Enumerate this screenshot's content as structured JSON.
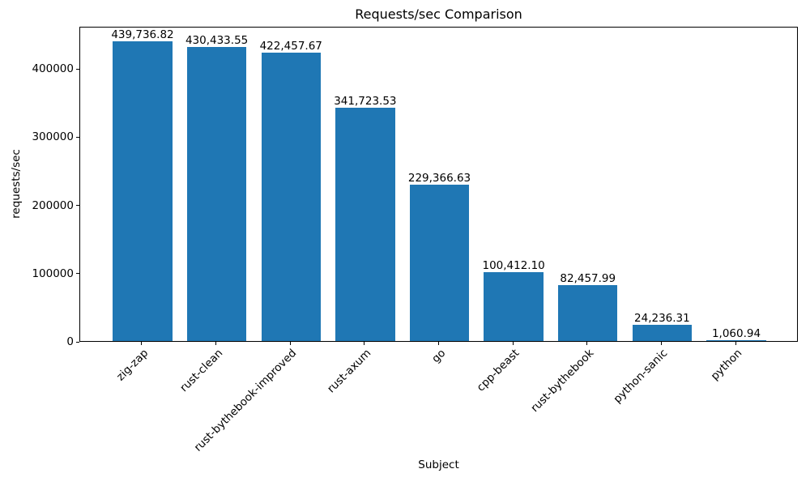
{
  "chart_data": {
    "type": "bar",
    "title": "Requests/sec Comparison",
    "xlabel": "Subject",
    "ylabel": "requests/sec",
    "categories": [
      "zig-zap",
      "rust-clean",
      "rust-bythebook-improved",
      "rust-axum",
      "go",
      "cpp-beast",
      "rust-bythebook",
      "python-sanic",
      "python"
    ],
    "values": [
      439736.82,
      430433.55,
      422457.67,
      341723.53,
      229366.63,
      100412.1,
      82457.99,
      24236.31,
      1060.94
    ],
    "value_labels": [
      "439,736.82",
      "430,433.55",
      "422,457.67",
      "341,723.53",
      "229,366.63",
      "100,412.10",
      "82,457.99",
      "24,236.31",
      "1,060.94"
    ],
    "yticks": [
      0,
      100000,
      200000,
      300000,
      400000
    ],
    "ytick_labels": [
      "0",
      "100000",
      "200000",
      "300000",
      "400000"
    ],
    "ylim": [
      0,
      461723.66
    ],
    "bar_color": "#1f77b4",
    "grid": false,
    "legend": null,
    "x_tick_rotation": 45,
    "bar_width_fraction": 0.8
  }
}
